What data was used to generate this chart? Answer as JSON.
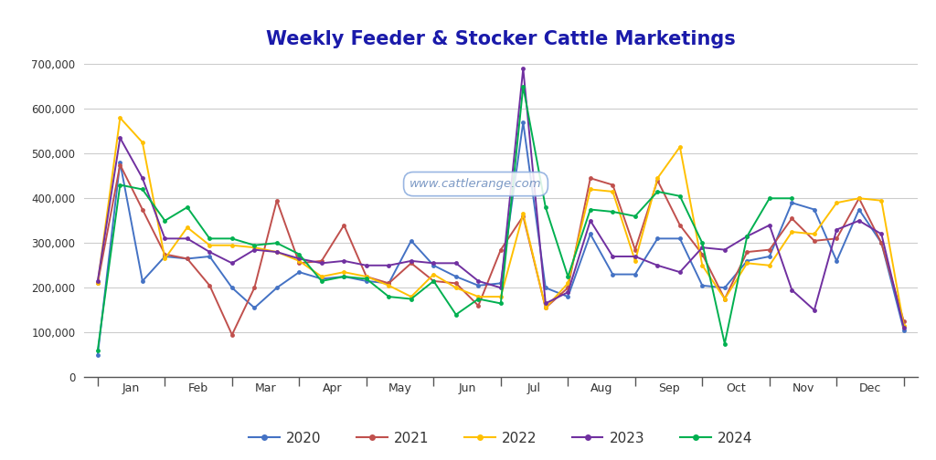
{
  "title": "Weekly Feeder & Stocker Cattle Marketings",
  "title_color": "#1a1aaa",
  "watermark": "www.cattlerange.com",
  "ylim": [
    0,
    720000
  ],
  "yticks": [
    0,
    100000,
    200000,
    300000,
    400000,
    500000,
    600000,
    700000
  ],
  "ytick_labels": [
    "0",
    "100,000",
    "200,000",
    "300,000",
    "400,000",
    "500,000",
    "600,000",
    "700,000"
  ],
  "months": [
    "Jan",
    "Feb",
    "Mar",
    "Apr",
    "May",
    "Jun",
    "Jul",
    "Aug",
    "Sep",
    "Oct",
    "Nov",
    "Dec"
  ],
  "series": {
    "2020": {
      "color": "#4472C4",
      "data": [
        50000,
        480000,
        215000,
        270000,
        265000,
        270000,
        200000,
        155000,
        200000,
        235000,
        220000,
        225000,
        215000,
        210000,
        305000,
        250000,
        225000,
        205000,
        210000,
        570000,
        200000,
        180000,
        320000,
        230000,
        230000,
        310000,
        310000,
        205000,
        200000,
        260000,
        270000,
        390000,
        375000,
        260000,
        375000,
        300000,
        105000
      ]
    },
    "2021": {
      "color": "#C0504D",
      "data": [
        210000,
        475000,
        375000,
        275000,
        265000,
        205000,
        95000,
        200000,
        395000,
        255000,
        260000,
        340000,
        225000,
        210000,
        255000,
        215000,
        210000,
        160000,
        285000,
        360000,
        155000,
        200000,
        445000,
        430000,
        285000,
        440000,
        340000,
        275000,
        175000,
        280000,
        285000,
        355000,
        305000,
        310000,
        400000,
        300000,
        125000
      ]
    },
    "2022": {
      "color": "#FFC000",
      "data": [
        210000,
        580000,
        525000,
        265000,
        335000,
        295000,
        295000,
        290000,
        280000,
        260000,
        225000,
        235000,
        225000,
        205000,
        180000,
        230000,
        200000,
        180000,
        180000,
        365000,
        155000,
        210000,
        420000,
        415000,
        260000,
        445000,
        515000,
        250000,
        175000,
        255000,
        250000,
        325000,
        320000,
        390000,
        400000,
        395000,
        115000
      ]
    },
    "2023": {
      "color": "#7030A0",
      "data": [
        215000,
        535000,
        445000,
        310000,
        310000,
        280000,
        255000,
        285000,
        280000,
        265000,
        255000,
        260000,
        250000,
        250000,
        260000,
        255000,
        255000,
        215000,
        200000,
        690000,
        165000,
        190000,
        350000,
        270000,
        270000,
        250000,
        235000,
        290000,
        285000,
        315000,
        340000,
        195000,
        150000,
        330000,
        350000,
        320000,
        110000
      ]
    },
    "2024": {
      "color": "#00B050",
      "data": [
        60000,
        430000,
        420000,
        350000,
        380000,
        310000,
        310000,
        295000,
        300000,
        275000,
        215000,
        225000,
        220000,
        180000,
        175000,
        215000,
        140000,
        175000,
        165000,
        650000,
        380000,
        225000,
        375000,
        370000,
        360000,
        415000,
        405000,
        300000,
        75000,
        315000,
        400000,
        400000,
        null,
        null,
        null,
        null,
        null
      ]
    }
  },
  "legend_years": [
    "2020",
    "2021",
    "2022",
    "2023",
    "2024"
  ],
  "background_color": "#ffffff",
  "grid_color": "#cccccc",
  "n_points": 37,
  "figsize": [
    10.24,
    5.04
  ],
  "dpi": 100
}
